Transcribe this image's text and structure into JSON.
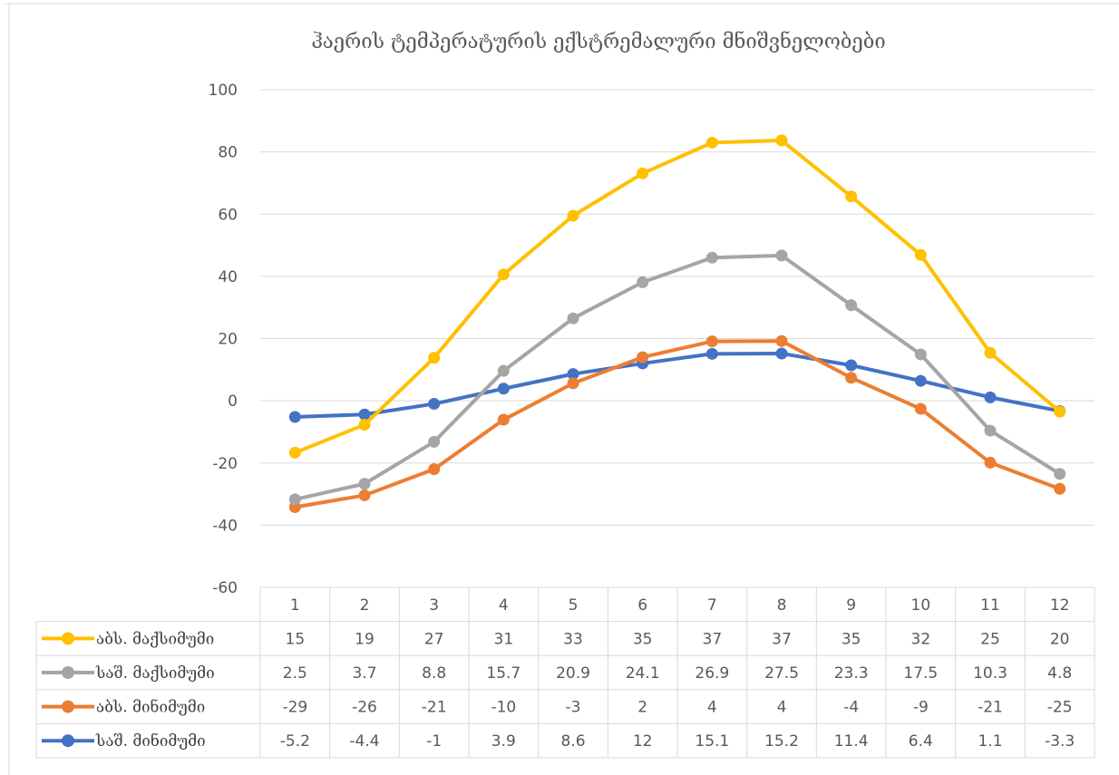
{
  "chart_data": {
    "type": "line",
    "title": "ჰაერის ტემპერატურის ექსტრემალური მნიშვნელობები",
    "categories": [
      "1",
      "2",
      "3",
      "4",
      "5",
      "6",
      "7",
      "8",
      "9",
      "10",
      "11",
      "12"
    ],
    "ylim": [
      -60,
      100
    ],
    "yticks": [
      -60,
      -40,
      -20,
      0,
      20,
      40,
      60,
      80,
      100
    ],
    "grid": true,
    "legend": "data-table",
    "stacked": true,
    "series": [
      {
        "name": "აბს. მაქსიმუმი",
        "color": "#FFC000",
        "values": [
          15,
          19,
          27,
          31,
          33,
          35,
          37,
          37,
          35,
          32,
          25,
          20
        ]
      },
      {
        "name": "საშ. მაქსიმუმი",
        "color": "#A5A5A5",
        "values": [
          2.5,
          3.7,
          8.8,
          15.7,
          20.9,
          24.1,
          26.9,
          27.5,
          23.3,
          17.5,
          10.3,
          4.8
        ]
      },
      {
        "name": "აბს. მინიმუმი",
        "color": "#ED7D31",
        "values": [
          -29,
          -26,
          -21,
          -10,
          -3,
          2,
          4,
          4,
          -4,
          -9,
          -21,
          -25
        ]
      },
      {
        "name": "საშ. მინიმუმი",
        "color": "#4472C4",
        "values": [
          -5.2,
          -4.4,
          -1,
          3.9,
          8.6,
          12,
          15.1,
          15.2,
          11.4,
          6.4,
          1.1,
          -3.3
        ]
      }
    ]
  }
}
